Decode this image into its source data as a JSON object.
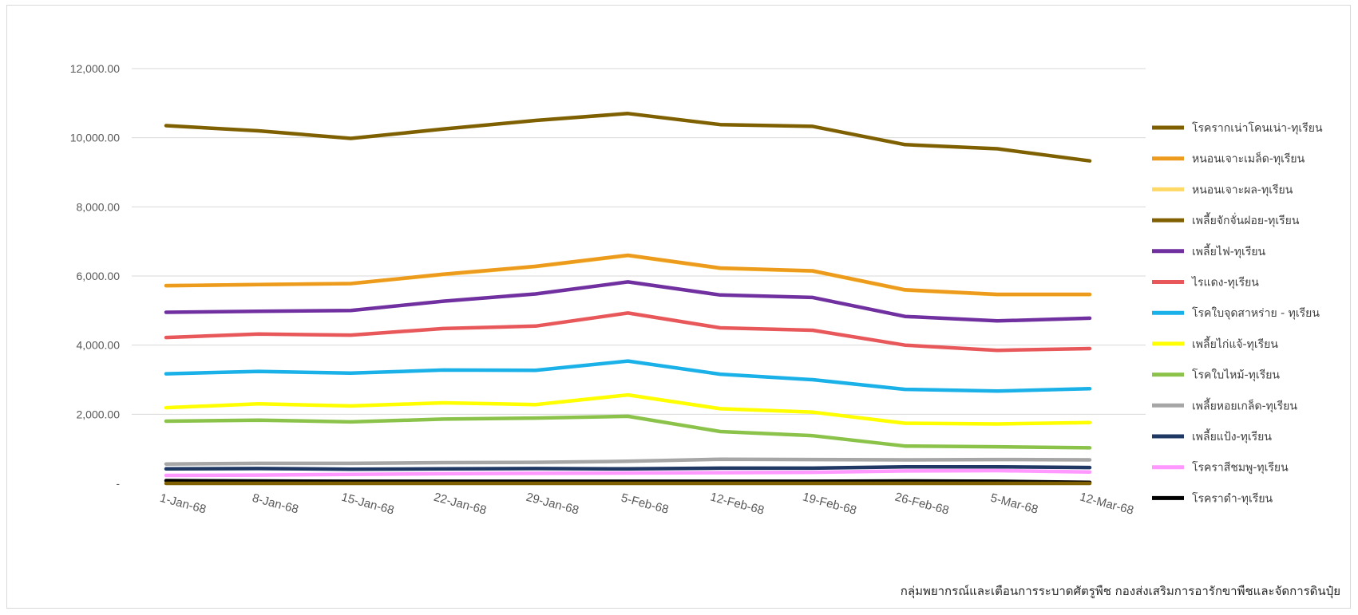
{
  "footer": "กลุ่มพยากรณ์และเตือนการระบาดศัตรูพืช  กองส่งเสริมการอารักขาพืชและจัดการดินปุ๋ย",
  "chart_data": {
    "type": "line",
    "title": "",
    "xlabel": "",
    "ylabel": "",
    "ylim": [
      0,
      12000
    ],
    "yticks": [
      0,
      2000,
      4000,
      6000,
      8000,
      10000,
      12000
    ],
    "ytick_labels": [
      "-",
      "2,000.00",
      "4,000.00",
      "6,000.00",
      "8,000.00",
      "10,000.00",
      "12,000.00"
    ],
    "grid": true,
    "legend_position": "right",
    "categories": [
      "1-Jan-68",
      "8-Jan-68",
      "15-Jan-68",
      "22-Jan-68",
      "29-Jan-68",
      "5-Feb-68",
      "12-Feb-68",
      "19-Feb-68",
      "26-Feb-68",
      "5-Mar-68",
      "12-Mar-68"
    ],
    "series": [
      {
        "name": "โรครากเน่าโคนเน่า-ทุเรียน",
        "color": "#7f6000",
        "values": [
          10350,
          10200,
          9980,
          10250,
          10500,
          10700,
          10380,
          10330,
          9800,
          9680,
          9330
        ]
      },
      {
        "name": "หนอนเจาะเมล็ด-ทุเรียน",
        "color": "#ed9b1c",
        "values": [
          5720,
          5750,
          5780,
          6050,
          6280,
          6600,
          6230,
          6150,
          5600,
          5470,
          5470
        ]
      },
      {
        "name": "หนอนเจาะผล-ทุเรียน",
        "color": "#ffd966",
        "values": [
          5720,
          5750,
          5780,
          6040,
          6270,
          6590,
          6220,
          6140,
          5590,
          5460,
          5460
        ]
      },
      {
        "name": "เพลี้ยจักจั่นฝอย-ทุเรียน",
        "color": "#806000",
        "values": [
          0,
          0,
          0,
          0,
          0,
          0,
          0,
          0,
          0,
          0,
          0
        ]
      },
      {
        "name": "เพลี้ยไฟ-ทุเรียน",
        "color": "#7030a0",
        "values": [
          4950,
          4980,
          5000,
          5270,
          5480,
          5830,
          5450,
          5380,
          4830,
          4700,
          4780
        ]
      },
      {
        "name": "ไรแดง-ทุเรียน",
        "color": "#e8585a",
        "values": [
          4220,
          4320,
          4290,
          4480,
          4550,
          4930,
          4500,
          4430,
          4000,
          3850,
          3900
        ]
      },
      {
        "name": "โรคใบจุดสาหร่าย - ทุเรียน",
        "color": "#1ab0e8",
        "values": [
          3170,
          3240,
          3190,
          3280,
          3270,
          3540,
          3160,
          3000,
          2720,
          2670,
          2740
        ]
      },
      {
        "name": "เพลี้ยไก่แจ้-ทุเรียน",
        "color": "#ffff00",
        "values": [
          2190,
          2300,
          2240,
          2330,
          2280,
          2560,
          2160,
          2060,
          1740,
          1720,
          1760
        ]
      },
      {
        "name": "โรคใบไหม้-ทุเรียน",
        "color": "#8bc34a",
        "values": [
          1800,
          1830,
          1780,
          1860,
          1890,
          1940,
          1500,
          1380,
          1080,
          1060,
          1030
        ]
      },
      {
        "name": "เพลี้ยหอยเกล็ด-ทุเรียน",
        "color": "#a6a6a6",
        "values": [
          560,
          580,
          580,
          600,
          610,
          640,
          700,
          690,
          680,
          690,
          680
        ]
      },
      {
        "name": "เพลี้ยแป้ง-ทุเรียน",
        "color": "#1f3864",
        "values": [
          420,
          430,
          410,
          420,
          430,
          420,
          440,
          440,
          480,
          480,
          460
        ]
      },
      {
        "name": "โรคราสีชมพู-ทุเรียน",
        "color": "#ff99ff",
        "values": [
          230,
          240,
          260,
          280,
          290,
          300,
          310,
          320,
          360,
          370,
          330
        ]
      },
      {
        "name": "โรคราดำ-ทุเรียน",
        "color": "#000000",
        "values": [
          80,
          70,
          60,
          60,
          60,
          60,
          60,
          60,
          70,
          60,
          30
        ]
      }
    ]
  }
}
